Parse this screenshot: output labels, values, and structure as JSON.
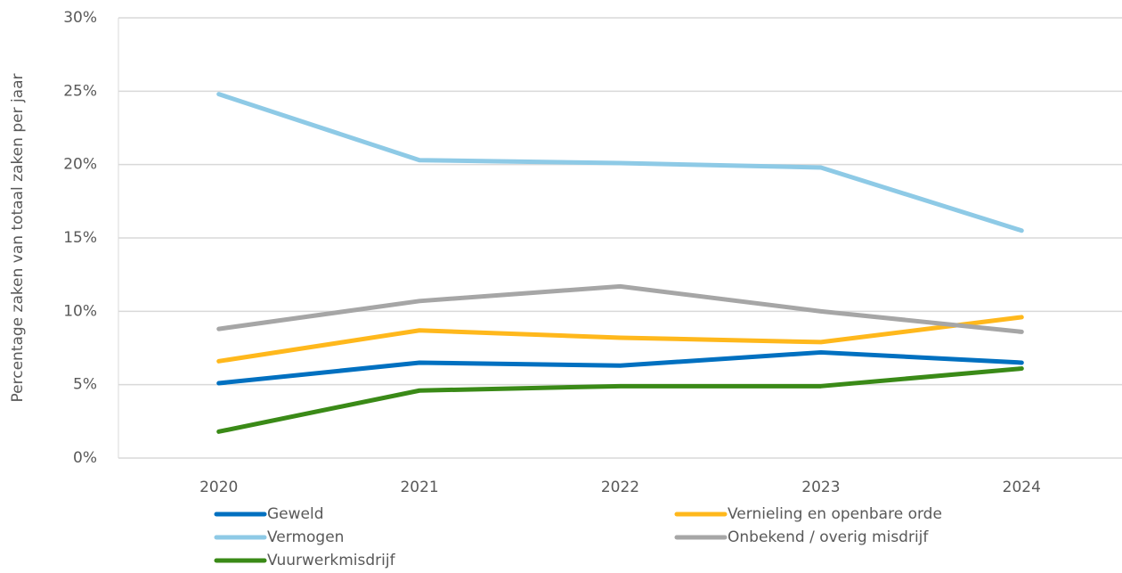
{
  "chart_data": {
    "type": "line",
    "ylabel": "Percentage zaken van totaal zaken per jaar",
    "categories": [
      "2020",
      "2021",
      "2022",
      "2023",
      "2024"
    ],
    "series": [
      {
        "name": "Geweld",
        "color": "#0070c0",
        "values": [
          5.1,
          6.5,
          6.3,
          7.2,
          6.5
        ]
      },
      {
        "name": "Vernieling en openbare orde",
        "color": "#ffb81c",
        "values": [
          6.6,
          8.7,
          8.2,
          7.9,
          9.6
        ]
      },
      {
        "name": "Vermogen",
        "color": "#8ecae6",
        "values": [
          24.8,
          20.3,
          20.1,
          19.8,
          15.5
        ]
      },
      {
        "name": "Onbekend / overig misdrijf",
        "color": "#a6a6a6",
        "values": [
          8.8,
          10.7,
          11.7,
          10.0,
          8.6
        ]
      },
      {
        "name": "Vuurwerkmisdrijf",
        "color": "#3a8a17",
        "values": [
          1.8,
          4.6,
          4.9,
          4.9,
          6.1
        ]
      }
    ],
    "ylim": [
      0,
      30
    ],
    "yticks": [
      {
        "value": 0,
        "label": "0%"
      },
      {
        "value": 5,
        "label": "5%"
      },
      {
        "value": 10,
        "label": "10%"
      },
      {
        "value": 15,
        "label": "15%"
      },
      {
        "value": 20,
        "label": "20%"
      },
      {
        "value": 25,
        "label": "25%"
      },
      {
        "value": 30,
        "label": "30%"
      }
    ],
    "grid": true,
    "legend": "bottom"
  }
}
